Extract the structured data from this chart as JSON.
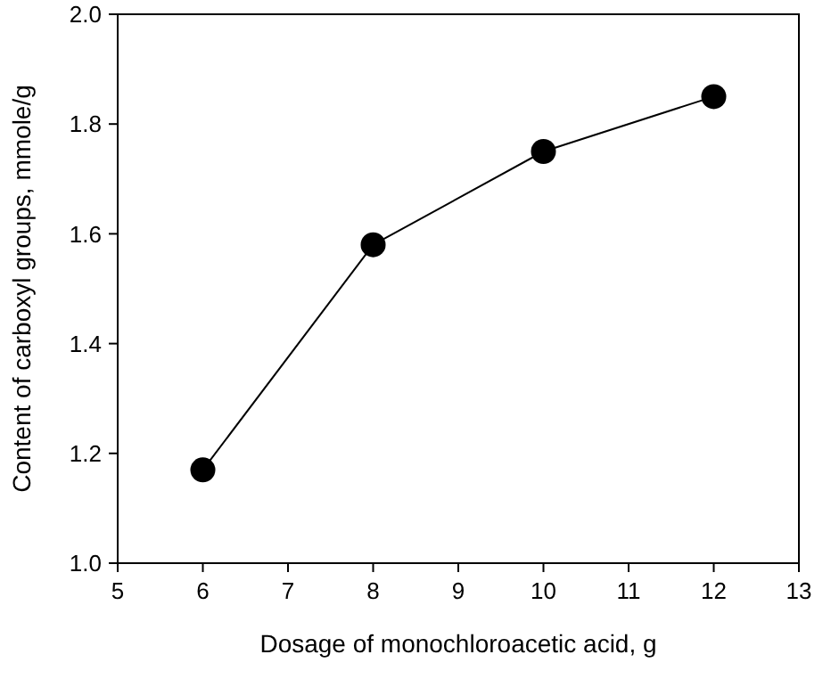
{
  "chart_data": {
    "type": "line",
    "xlabel": "Dosage of monochloroacetic acid, g",
    "ylabel": "Content of carboxyl groups, mmole/g",
    "x": [
      6,
      8,
      10,
      12
    ],
    "series": [
      {
        "color": "#000000",
        "values": [
          1.17,
          1.58,
          1.75,
          1.85
        ]
      }
    ],
    "xlim": [
      5,
      13
    ],
    "xticks": [
      5,
      6,
      7,
      8,
      9,
      10,
      11,
      12,
      13
    ],
    "ylim": [
      1.0,
      2.0
    ],
    "yticks": [
      {
        "value": 1.0,
        "label": "1.0"
      },
      {
        "value": 1.2,
        "label": "1.2"
      },
      {
        "value": 1.4,
        "label": "1.4"
      },
      {
        "value": 1.6,
        "label": "1.6"
      },
      {
        "value": 1.8,
        "label": "1.8"
      },
      {
        "value": 2.0,
        "label": "2.0"
      }
    ],
    "marker": "circle",
    "line_style": "solid",
    "grid": false
  }
}
